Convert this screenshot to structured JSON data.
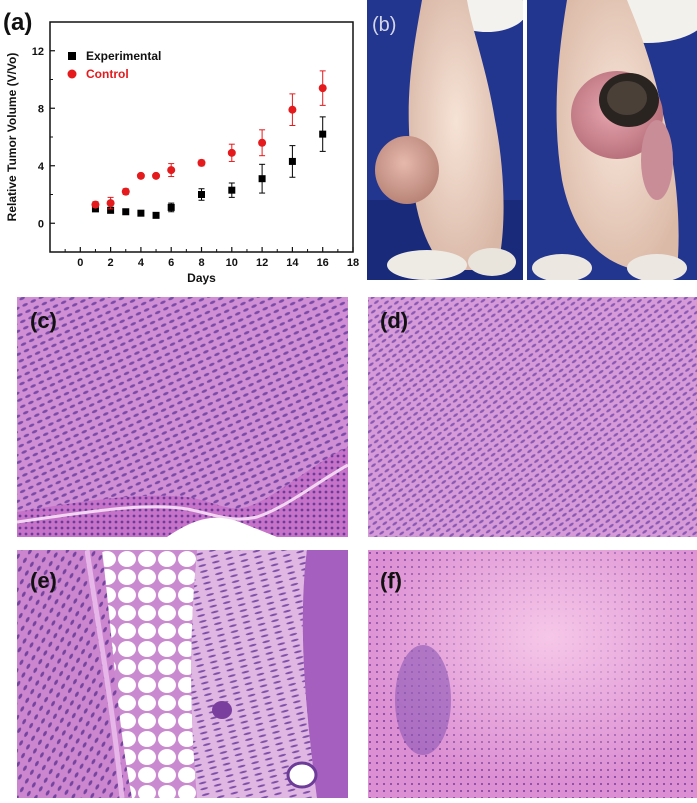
{
  "figure": {
    "panel_labels": {
      "a": "(a)",
      "b": "(b)",
      "c": "(c)",
      "d": "(d)",
      "e": "(e)",
      "f": "(f)"
    },
    "colors": {
      "experimental": "#000000",
      "control": "#e41a1c",
      "he_pink": "#d98fd6",
      "he_purple": "#9a5fc0",
      "photo_blue": "#1c2e86"
    }
  },
  "chart_data": {
    "type": "scatter",
    "xlabel": "Days",
    "ylabel": "Relative Tumor Volume (V/Vo)",
    "xlim": [
      -2,
      18
    ],
    "ylim": [
      -2,
      14
    ],
    "xticks": [
      0,
      2,
      4,
      6,
      8,
      10,
      12,
      14,
      16,
      18
    ],
    "yticks": [
      0,
      4,
      8,
      12
    ],
    "legend_position": "top-left",
    "grid": false,
    "series": [
      {
        "name": "Experimental",
        "marker": "square",
        "color": "#000000",
        "x": [
          1,
          2,
          3,
          4,
          5,
          6,
          8,
          10,
          12,
          14,
          16
        ],
        "y": [
          1.0,
          0.9,
          0.8,
          0.7,
          0.55,
          1.1,
          2.0,
          2.3,
          3.1,
          4.3,
          6.2
        ],
        "err": [
          0.15,
          0.15,
          0.1,
          0.1,
          0.1,
          0.3,
          0.4,
          0.5,
          1.0,
          1.1,
          1.2
        ]
      },
      {
        "name": "Control",
        "marker": "circle",
        "color": "#e41a1c",
        "x": [
          1,
          2,
          3,
          4,
          5,
          6,
          8,
          10,
          12,
          14,
          16
        ],
        "y": [
          1.3,
          1.4,
          2.2,
          3.3,
          3.3,
          3.7,
          4.2,
          4.9,
          5.6,
          7.9,
          9.4
        ],
        "err": [
          0.2,
          0.4,
          0.2,
          0.15,
          0.15,
          0.45,
          0.2,
          0.6,
          0.9,
          1.1,
          1.2
        ]
      }
    ]
  }
}
